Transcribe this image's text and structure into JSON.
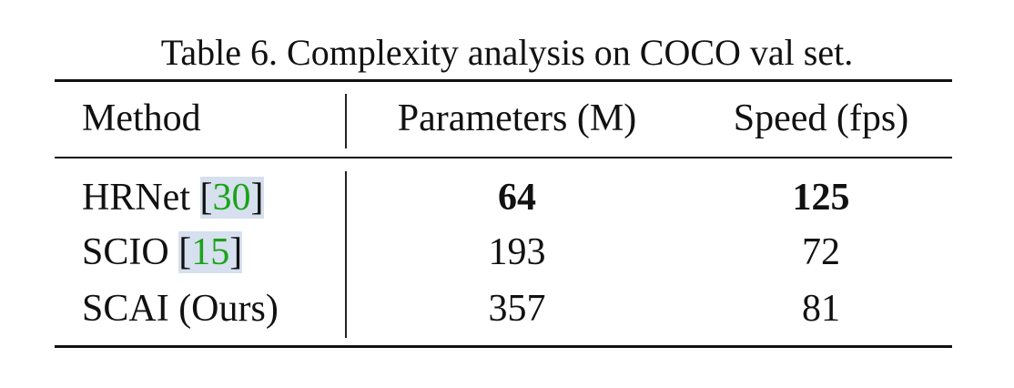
{
  "caption": "Table 6. Complexity analysis on COCO val set.",
  "table": {
    "header": [
      "Method",
      "Parameters (M)",
      "Speed (fps)"
    ],
    "rows": [
      [
        {
          "name": "HRNet",
          "cite": "[30]"
        },
        64,
        125
      ],
      [
        {
          "name": "SCIO",
          "cite": "[15]"
        },
        193,
        72
      ],
      [
        {
          "name": "SCAI (Ours)"
        },
        357,
        81
      ]
    ]
  }
}
